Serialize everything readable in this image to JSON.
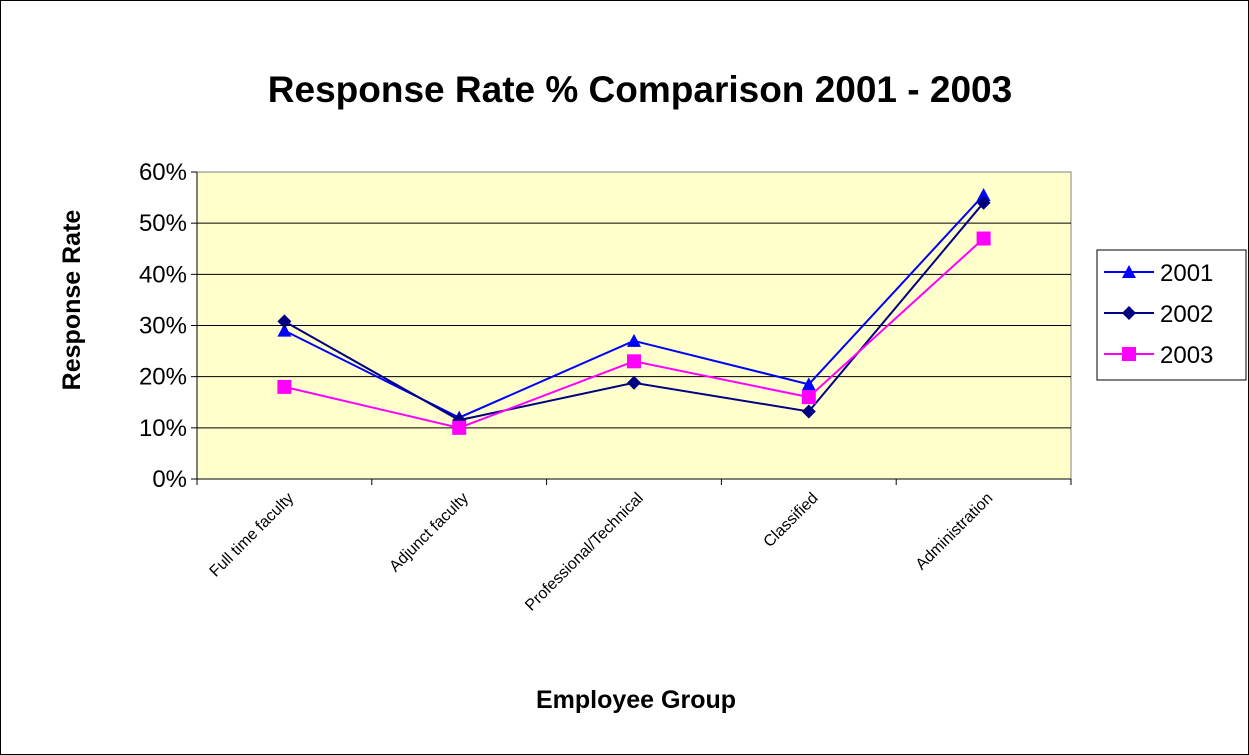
{
  "chart_data": {
    "type": "line",
    "title": "Response Rate % Comparison 2001 - 2003",
    "xlabel": "Employee Group",
    "ylabel": "Response Rate",
    "categories": [
      "Full time faculty",
      "Adjunct faculty",
      "Professional/Technical",
      "Classified",
      "Administration"
    ],
    "ylim": [
      0,
      60
    ],
    "yticks": [
      "0%",
      "10%",
      "20%",
      "30%",
      "40%",
      "50%",
      "60%"
    ],
    "grid": true,
    "legend_position": "right",
    "plot_background": "#FFFFCC",
    "series": [
      {
        "name": "2001",
        "color": "#0000FF",
        "marker": "triangle",
        "values": [
          29,
          12,
          27,
          18.5,
          55.5
        ]
      },
      {
        "name": "2002",
        "color": "#000080",
        "marker": "diamond",
        "values": [
          30.8,
          11.5,
          18.8,
          13.2,
          54
        ]
      },
      {
        "name": "2003",
        "color": "#FF00FF",
        "marker": "square",
        "values": [
          18,
          10,
          23,
          16,
          47
        ]
      }
    ]
  }
}
